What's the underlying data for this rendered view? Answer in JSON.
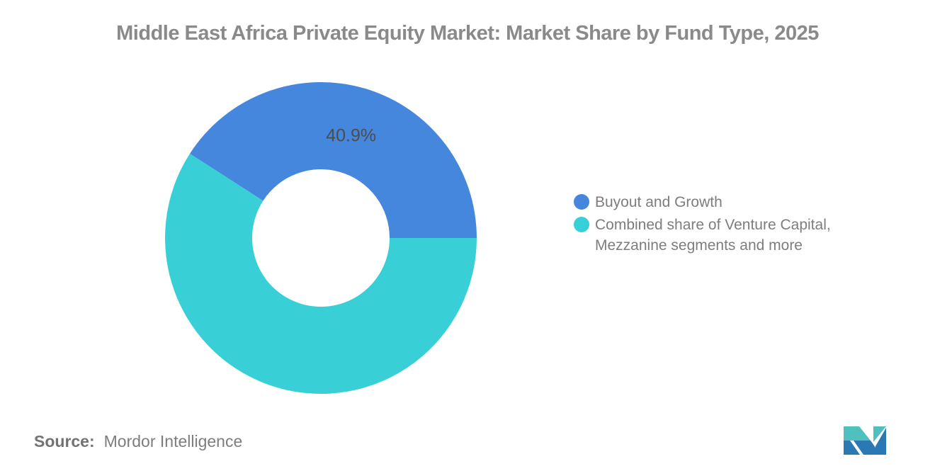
{
  "title": "Middle East Africa Private Equity Market: Market Share by Fund Type, 2025",
  "chart_data": {
    "type": "pie",
    "subtype": "donut",
    "title": "Middle East Africa Private Equity Market: Market Share by Fund Type, 2025",
    "unit": "%",
    "categories": [
      "Buyout and Growth",
      "Combined share of Venture Capital, Mezzanine segments and more"
    ],
    "values": [
      40.9,
      59.1
    ],
    "slices": [
      {
        "key": "buyout-and-growth",
        "label": "Buyout and Growth",
        "value": 40.9,
        "data_label": "40.9%",
        "color": "#4587DC"
      },
      {
        "key": "combined-venture-capital-mezzanine-more",
        "label": "Combined share of Venture Capital, Mezzanine segments and more",
        "value": 59.1,
        "data_label": "",
        "color": "#39CFD6"
      }
    ],
    "total": 100,
    "start_angle_deg": 147.24,
    "direction": "clockwise",
    "inner_radius_ratio": 0.44,
    "legend_position": "right",
    "grid": false
  },
  "legend": {
    "items": [
      {
        "label": "Buyout and Growth"
      },
      {
        "label": "Combined share of Venture Capital, Mezzanine segments and more"
      }
    ]
  },
  "source": {
    "prefix": "Source:",
    "text": "Mordor Intelligence"
  },
  "logo": {
    "name": "mordor-intelligence-monogram",
    "teal": "#4FC0BE",
    "blue": "#2A79B5"
  },
  "colors": {
    "accent_blue": "#4587DC",
    "accent_teal": "#39CFD6",
    "title_text": "#8A8A8A",
    "data_label_text": "#4D4D4D",
    "legend_text": "#7D7D7D",
    "source_text": "#737373",
    "background": "#FFFFFF"
  }
}
